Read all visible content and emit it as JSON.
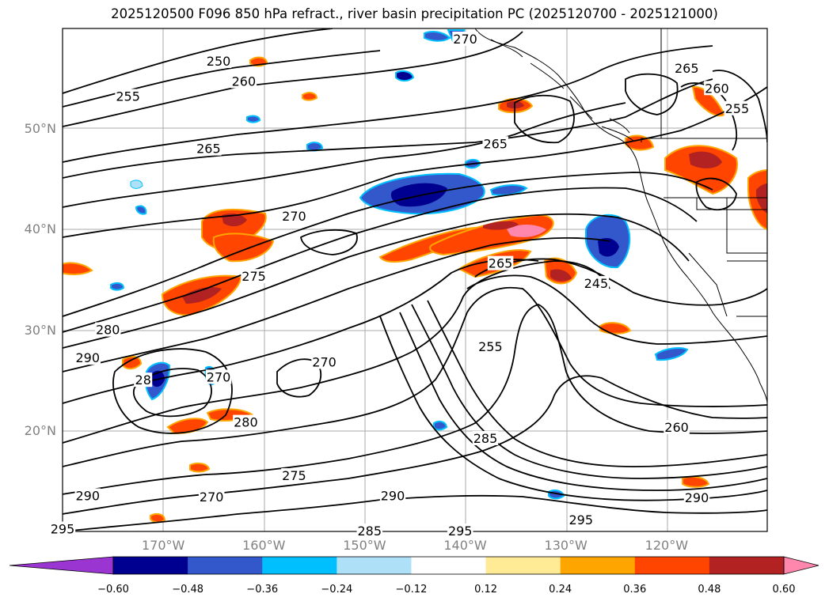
{
  "title": "2025120500 F096 850 hPa refract., river basin precipitation PC (2025120700 - 2025121000)",
  "lat_labels": [
    {
      "text": "50°N",
      "lat": 50
    },
    {
      "text": "40°N",
      "lat": 40
    },
    {
      "text": "30°N",
      "lat": 30
    },
    {
      "text": "20°N",
      "lat": 20
    }
  ],
  "lon_labels": [
    {
      "text": "170°W",
      "lon": -170
    },
    {
      "text": "160°W",
      "lon": -160
    },
    {
      "text": "150°W",
      "lon": -150
    },
    {
      "text": "140°W",
      "lon": -140
    },
    {
      "text": "130°W",
      "lon": -130
    },
    {
      "text": "120°W",
      "lon": -120
    }
  ],
  "contour_labels": [
    {
      "text": "250",
      "lon": -164.5,
      "lat": 56.7
    },
    {
      "text": "260",
      "lon": -162.0,
      "lat": 54.7
    },
    {
      "text": "255",
      "lon": -173.5,
      "lat": 53.2
    },
    {
      "text": "265",
      "lon": -165.5,
      "lat": 48.0
    },
    {
      "text": "270",
      "lon": -140.0,
      "lat": 58.9
    },
    {
      "text": "265",
      "lon": -118.0,
      "lat": 56.0
    },
    {
      "text": "260",
      "lon": -115.0,
      "lat": 54.0
    },
    {
      "text": "255",
      "lon": -113.0,
      "lat": 52.0
    },
    {
      "text": "265",
      "lon": -137.0,
      "lat": 48.5
    },
    {
      "text": "270",
      "lon": -157.0,
      "lat": 41.3
    },
    {
      "text": "275",
      "lon": -161.0,
      "lat": 35.3
    },
    {
      "text": "265",
      "lon": -136.5,
      "lat": 36.6
    },
    {
      "text": "245",
      "lon": -127.0,
      "lat": 34.6
    },
    {
      "text": "280",
      "lon": -175.5,
      "lat": 30.0
    },
    {
      "text": "290",
      "lon": -177.5,
      "lat": 27.2
    },
    {
      "text": "270",
      "lon": -154.0,
      "lat": 26.8
    },
    {
      "text": "255",
      "lon": -137.5,
      "lat": 28.3
    },
    {
      "text": "28",
      "lon": -172.0,
      "lat": 25.0
    },
    {
      "text": "270",
      "lon": -164.5,
      "lat": 25.3
    },
    {
      "text": "280",
      "lon": -161.8,
      "lat": 20.8
    },
    {
      "text": "285",
      "lon": -138.0,
      "lat": 19.2
    },
    {
      "text": "260",
      "lon": -119.0,
      "lat": 20.3
    },
    {
      "text": "275",
      "lon": -157.0,
      "lat": 15.5
    },
    {
      "text": "270",
      "lon": -165.2,
      "lat": 13.4
    },
    {
      "text": "290",
      "lon": -177.5,
      "lat": 13.5
    },
    {
      "text": "290",
      "lon": -147.2,
      "lat": 13.5
    },
    {
      "text": "290",
      "lon": -117.0,
      "lat": 13.3
    },
    {
      "text": "295",
      "lon": -180.0,
      "lat": 10.2
    },
    {
      "text": "285",
      "lon": -149.5,
      "lat": 10.0
    },
    {
      "text": "295",
      "lon": -140.5,
      "lat": 10.0
    },
    {
      "text": "295",
      "lon": -128.5,
      "lat": 11.1
    }
  ],
  "colorbar": {
    "ticks": [
      "−0.60",
      "−0.48",
      "−0.36",
      "−0.24",
      "−0.12",
      "0.12",
      "0.24",
      "0.36",
      "0.48",
      "0.60"
    ],
    "colors": [
      "#9b35d2",
      "#000090",
      "#3358cc",
      "#00bfff",
      "#aee0f8",
      "#ffffff",
      "#ffeb96",
      "#ffa500",
      "#ff4500",
      "#b22222",
      "#ff86ac"
    ]
  }
}
